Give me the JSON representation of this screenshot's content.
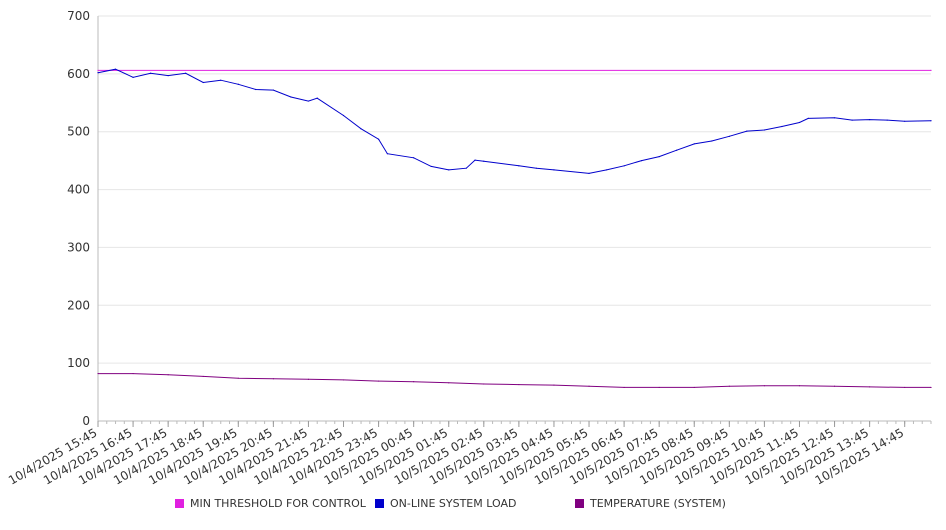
{
  "chart_data": {
    "type": "line",
    "title": "",
    "xlabel": "",
    "ylabel": "",
    "ylim": [
      0,
      700
    ],
    "yticks": [
      0,
      100,
      200,
      300,
      400,
      500,
      600,
      700
    ],
    "xlim": [
      "10/4/2025 15:45",
      "10/5/2025 15:30"
    ],
    "xticks": [
      "10/4/2025 15:45",
      "10/4/2025 16:45",
      "10/4/2025 17:45",
      "10/4/2025 18:45",
      "10/4/2025 19:45",
      "10/4/2025 20:45",
      "10/4/2025 21:45",
      "10/4/2025 22:45",
      "10/4/2025 23:45",
      "10/5/2025 00:45",
      "10/5/2025 01:45",
      "10/5/2025 02:45",
      "10/5/2025 03:45",
      "10/5/2025 04:45",
      "10/5/2025 05:45",
      "10/5/2025 06:45",
      "10/5/2025 07:45",
      "10/5/2025 08:45",
      "10/5/2025 09:45",
      "10/5/2025 10:45",
      "10/5/2025 11:45",
      "10/5/2025 12:45",
      "10/5/2025 13:45",
      "10/5/2025 14:45"
    ],
    "grid": true,
    "legend_position": "bottom",
    "series": [
      {
        "name": "MIN THRESHOLD FOR CONTROL",
        "color": "#e020e0",
        "points": [
          [
            "10/4/2025 15:45",
            606
          ],
          [
            "10/5/2025 15:30",
            606
          ]
        ]
      },
      {
        "name": "ON-LINE SYSTEM LOAD",
        "color": "#0000cc",
        "points": [
          [
            "10/4/2025 15:45",
            602
          ],
          [
            "10/4/2025 16:15",
            608
          ],
          [
            "10/4/2025 16:45",
            594
          ],
          [
            "10/4/2025 17:15",
            601
          ],
          [
            "10/4/2025 17:45",
            597
          ],
          [
            "10/4/2025 18:15",
            601
          ],
          [
            "10/4/2025 18:45",
            585
          ],
          [
            "10/4/2025 19:15",
            589
          ],
          [
            "10/4/2025 19:45",
            582
          ],
          [
            "10/4/2025 20:15",
            573
          ],
          [
            "10/4/2025 20:45",
            572
          ],
          [
            "10/4/2025 21:15",
            560
          ],
          [
            "10/4/2025 21:45",
            553
          ],
          [
            "10/4/2025 22:00",
            558
          ],
          [
            "10/4/2025 22:45",
            528
          ],
          [
            "10/4/2025 23:15",
            505
          ],
          [
            "10/4/2025 23:45",
            487
          ],
          [
            "10/5/2025 00:00",
            462
          ],
          [
            "10/5/2025 00:45",
            455
          ],
          [
            "10/5/2025 01:15",
            440
          ],
          [
            "10/5/2025 01:45",
            434
          ],
          [
            "10/5/2025 02:15",
            437
          ],
          [
            "10/5/2025 02:30",
            451
          ],
          [
            "10/5/2025 02:45",
            449
          ],
          [
            "10/5/2025 03:45",
            441
          ],
          [
            "10/5/2025 04:15",
            437
          ],
          [
            "10/5/2025 04:45",
            434
          ],
          [
            "10/5/2025 05:45",
            428
          ],
          [
            "10/5/2025 06:15",
            434
          ],
          [
            "10/5/2025 06:45",
            441
          ],
          [
            "10/5/2025 07:15",
            450
          ],
          [
            "10/5/2025 07:45",
            457
          ],
          [
            "10/5/2025 08:15",
            468
          ],
          [
            "10/5/2025 08:45",
            479
          ],
          [
            "10/5/2025 09:15",
            484
          ],
          [
            "10/5/2025 09:45",
            492
          ],
          [
            "10/5/2025 10:15",
            501
          ],
          [
            "10/5/2025 10:45",
            503
          ],
          [
            "10/5/2025 11:15",
            509
          ],
          [
            "10/5/2025 11:45",
            516
          ],
          [
            "10/5/2025 12:00",
            523
          ],
          [
            "10/5/2025 12:45",
            524
          ],
          [
            "10/5/2025 13:15",
            520
          ],
          [
            "10/5/2025 13:45",
            521
          ],
          [
            "10/5/2025 14:15",
            520
          ],
          [
            "10/5/2025 14:45",
            518
          ],
          [
            "10/5/2025 15:30",
            519
          ]
        ]
      },
      {
        "name": "TEMPERATURE (SYSTEM)",
        "color": "#800080",
        "points": [
          [
            "10/4/2025 15:45",
            82
          ],
          [
            "10/4/2025 16:45",
            82
          ],
          [
            "10/4/2025 17:45",
            80
          ],
          [
            "10/4/2025 18:45",
            77
          ],
          [
            "10/4/2025 19:45",
            74
          ],
          [
            "10/4/2025 20:45",
            73
          ],
          [
            "10/4/2025 21:45",
            72
          ],
          [
            "10/4/2025 22:45",
            71
          ],
          [
            "10/4/2025 23:45",
            69
          ],
          [
            "10/5/2025 00:45",
            68
          ],
          [
            "10/5/2025 01:45",
            66
          ],
          [
            "10/5/2025 02:45",
            64
          ],
          [
            "10/5/2025 03:45",
            63
          ],
          [
            "10/5/2025 04:45",
            62
          ],
          [
            "10/5/2025 05:45",
            60
          ],
          [
            "10/5/2025 06:45",
            58
          ],
          [
            "10/5/2025 07:45",
            58
          ],
          [
            "10/5/2025 08:45",
            58
          ],
          [
            "10/5/2025 09:45",
            60
          ],
          [
            "10/5/2025 10:45",
            61
          ],
          [
            "10/5/2025 11:45",
            61
          ],
          [
            "10/5/2025 12:45",
            60
          ],
          [
            "10/5/2025 13:45",
            59
          ],
          [
            "10/5/2025 14:45",
            58
          ],
          [
            "10/5/2025 15:30",
            58
          ]
        ]
      }
    ]
  }
}
